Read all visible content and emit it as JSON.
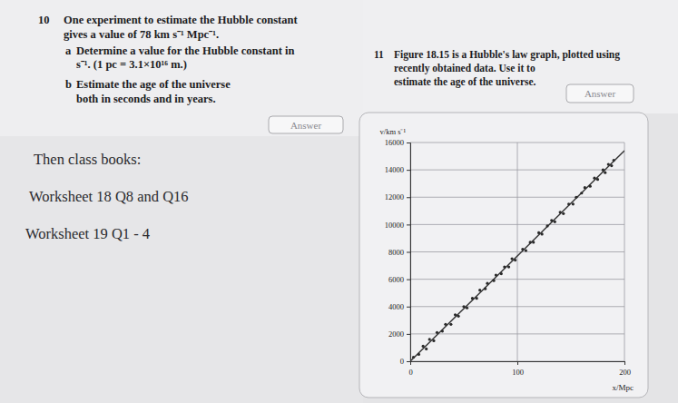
{
  "questions": [
    {
      "number": "10",
      "lines": [
        "One experiment to estimate the Hubble constant",
        "gives a value of 78 km s⁻¹ Mpc⁻¹."
      ],
      "parts": [
        {
          "label": "a",
          "lines": [
            "Determine a value for the Hubble constant in",
            "s⁻¹. (1 pc = 3.1×10¹⁶ m.)"
          ]
        },
        {
          "label": "b",
          "lines": [
            "Estimate the age of the universe",
            "both in seconds and in years."
          ]
        }
      ],
      "button": "Answer"
    },
    {
      "number": "11",
      "lines": [
        "Figure 18.15 is a Hubble's law graph, plotted using",
        "recently obtained data. Use it to",
        "estimate the age of the universe."
      ],
      "parts": [],
      "button": "Answer"
    }
  ],
  "notes": [
    "Then class books:",
    "Worksheet 18 Q8 and Q16",
    "Worksheet 19 Q1 - 4"
  ],
  "chart_data": {
    "type": "scatter",
    "x_label": "x/Mpc",
    "y_label": "v/km s⁻¹",
    "x": [
      3,
      8,
      12,
      15,
      18,
      22,
      25,
      30,
      33,
      38,
      42,
      45,
      50,
      53,
      58,
      62,
      65,
      70,
      72,
      78,
      80,
      85,
      88,
      92,
      95,
      98,
      105,
      108,
      112,
      115,
      120,
      123,
      128,
      132,
      135,
      140,
      143,
      148,
      152,
      155,
      160,
      163,
      168,
      172,
      175,
      180,
      182,
      185,
      188,
      190
    ],
    "values": [
      300,
      500,
      1100,
      900,
      1600,
      1500,
      2100,
      2200,
      2700,
      2700,
      3400,
      3300,
      4000,
      3900,
      4600,
      4600,
      5200,
      5300,
      5700,
      5900,
      6300,
      6400,
      6900,
      6900,
      7500,
      7400,
      8200,
      8100,
      8700,
      8700,
      9400,
      9300,
      9900,
      10300,
      10200,
      10900,
      10800,
      11500,
      11500,
      12000,
      12300,
      12700,
      12800,
      13400,
      13300,
      14000,
      13800,
      14400,
      14300,
      14700
    ],
    "xlim": [
      0,
      200
    ],
    "ylim": [
      0,
      16000
    ],
    "xticks": [
      0,
      100,
      200
    ],
    "yticks": [
      0,
      2000,
      4000,
      6000,
      8000,
      10000,
      12000,
      14000,
      16000
    ],
    "grid": true,
    "marker": "dot",
    "color": "#2a2a2a",
    "fit_line": {
      "x": [
        0,
        200
      ],
      "values": [
        0,
        15400
      ]
    }
  }
}
